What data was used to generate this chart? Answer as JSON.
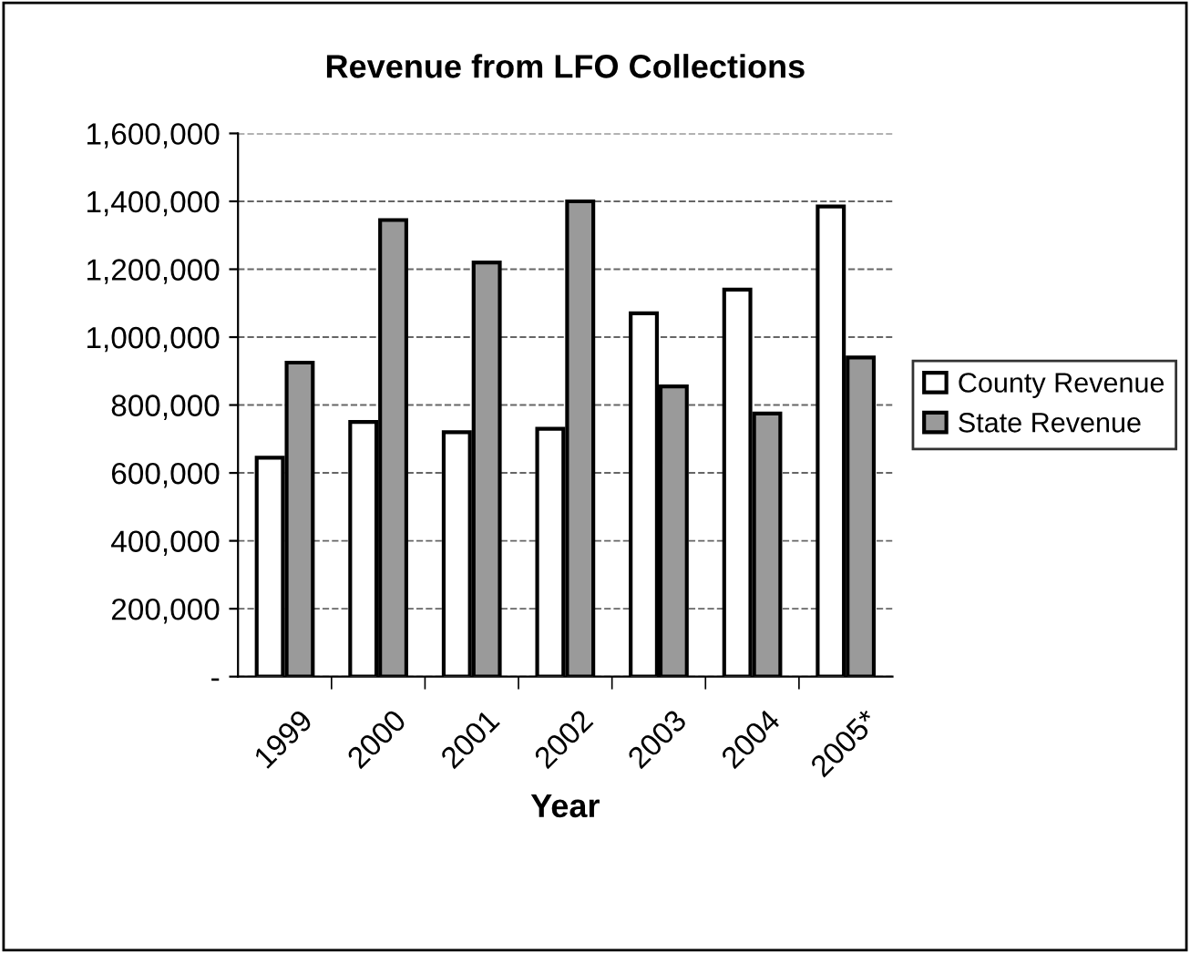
{
  "chart_data": {
    "type": "bar",
    "title": "Revenue from LFO Collections",
    "xlabel": "Year",
    "categories": [
      "1999",
      "2000",
      "2001",
      "2002",
      "2003",
      "2004",
      "2005*"
    ],
    "series": [
      {
        "name": "County Revenue",
        "color": "#ffffff",
        "values": [
          645000,
          750000,
          720000,
          730000,
          1070000,
          1140000,
          1385000
        ]
      },
      {
        "name": "State Revenue",
        "color": "#9a9a9a",
        "values": [
          925000,
          1345000,
          1220000,
          1400000,
          855000,
          775000,
          940000
        ]
      }
    ],
    "ylim": [
      0,
      1600000
    ],
    "yticks": [
      {
        "value": 0,
        "label": "-"
      },
      {
        "value": 200000,
        "label": "200,000"
      },
      {
        "value": 400000,
        "label": "400,000"
      },
      {
        "value": 600000,
        "label": "600,000"
      },
      {
        "value": 800000,
        "label": "800,000"
      },
      {
        "value": 1000000,
        "label": "1,000,000"
      },
      {
        "value": 1200000,
        "label": "1,200,000"
      },
      {
        "value": 1400000,
        "label": "1,400,000"
      },
      {
        "value": 1600000,
        "label": "1,600,000"
      }
    ],
    "grid": "y",
    "legend": "right"
  }
}
